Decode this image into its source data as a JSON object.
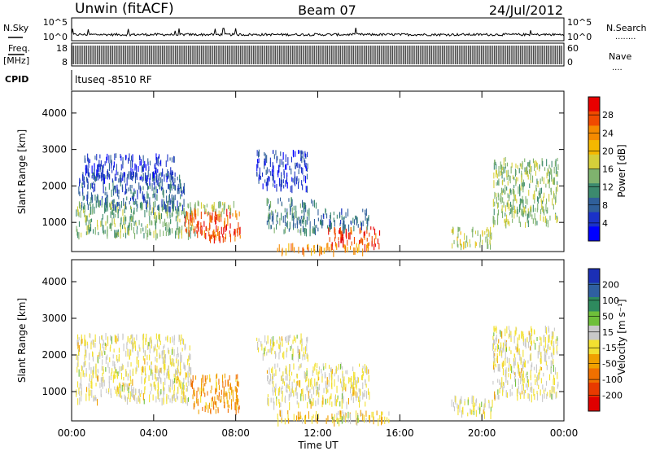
{
  "header": {
    "left_title": "Unwin (fitACF)",
    "center_title": "Beam 07",
    "right_title": "24/Jul/2012"
  },
  "strip": {
    "nsky_label": "N.Sky",
    "nsearch_label": "N.Search",
    "nsearch_dots": "........",
    "noise_ticks": [
      "10^5",
      "10^0"
    ],
    "freq_label_1": "Freq.",
    "freq_label_2": "[MHz]",
    "freq_ticks": [
      "18",
      "8"
    ],
    "nave_label": "Nave",
    "nave_dots": "....",
    "nave_ticks": [
      "60",
      "0"
    ],
    "cpid_label": "CPID",
    "cpid_text": "ltuseq -8510 RF"
  },
  "colorbars": {
    "power": {
      "label": "Power [dB]",
      "ticks": [
        "28",
        "24",
        "20",
        "16",
        "12",
        "8",
        "4"
      ],
      "colors": [
        "#e80000",
        "#f04a00",
        "#f58a00",
        "#f5b800",
        "#d5cf3a",
        "#7fb36e",
        "#3c8a6e",
        "#2f5f9a",
        "#1b32c8",
        "#0000ff"
      ]
    },
    "velocity": {
      "label": "Velocity [m s⁻¹]",
      "ticks": [
        "200",
        "100",
        "50",
        "15",
        "-15",
        "-50",
        "-100",
        "-200"
      ],
      "colors": [
        "#1b2fb5",
        "#2f5fa0",
        "#2e8a5e",
        "#6fbf3a",
        "#c8c8c8",
        "#f2e030",
        "#f0a000",
        "#f07000",
        "#e83a00",
        "#e00000"
      ]
    }
  },
  "chart_data": [
    {
      "type": "heatmap",
      "title": "Power",
      "ylabel": "Slant Range [km]",
      "y_ticks": [
        "1000",
        "2000",
        "3000",
        "4000"
      ],
      "ylim": [
        200,
        4600
      ],
      "xlim": [
        0,
        24
      ],
      "clusters": [
        {
          "t0": 0.2,
          "t1": 6.0,
          "r0": 700,
          "r1": 1600,
          "v": 14
        },
        {
          "t0": 0.3,
          "t1": 5.5,
          "r0": 1400,
          "r1": 2400,
          "v": 9
        },
        {
          "t0": 0.5,
          "t1": 5.0,
          "r0": 2200,
          "r1": 2900,
          "v": 6
        },
        {
          "t0": 5.5,
          "t1": 8.2,
          "r0": 600,
          "r1": 1400,
          "v": 26
        },
        {
          "t0": 6.0,
          "t1": 8.0,
          "r0": 1300,
          "r1": 1600,
          "v": 16
        },
        {
          "t0": 9.5,
          "t1": 12.0,
          "r0": 800,
          "r1": 1700,
          "v": 11
        },
        {
          "t0": 12.5,
          "t1": 15.0,
          "r0": 400,
          "r1": 900,
          "v": 27
        },
        {
          "t0": 12.0,
          "t1": 14.5,
          "r0": 900,
          "r1": 1400,
          "v": 10
        },
        {
          "t0": 10.0,
          "t1": 14.5,
          "r0": 250,
          "r1": 450,
          "v": 22
        },
        {
          "t0": 18.5,
          "t1": 20.5,
          "r0": 400,
          "r1": 900,
          "v": 17
        },
        {
          "t0": 20.5,
          "t1": 23.7,
          "r0": 1000,
          "r1": 2800,
          "v": 15
        },
        {
          "t0": 9.0,
          "t1": 11.5,
          "r0": 2000,
          "r1": 3000,
          "v": 6
        }
      ]
    },
    {
      "type": "heatmap",
      "title": "Velocity",
      "ylabel": "Slant Range [km]",
      "y_ticks": [
        "1000",
        "2000",
        "3000",
        "4000"
      ],
      "ylim": [
        200,
        4600
      ],
      "xlim": [
        0,
        24
      ],
      "x_ticks": [
        "00:00",
        "04:00",
        "08:00",
        "12:00",
        "16:00",
        "20:00",
        "00:00"
      ],
      "xlabel": "Time UT",
      "clusters": [
        {
          "t0": 0.2,
          "t1": 5.8,
          "r0": 800,
          "r1": 2600,
          "v": 0
        },
        {
          "t0": 5.8,
          "t1": 8.2,
          "r0": 500,
          "r1": 1500,
          "v": -90
        },
        {
          "t0": 9.5,
          "t1": 14.5,
          "r0": 700,
          "r1": 1800,
          "v": 0
        },
        {
          "t0": 10.0,
          "t1": 15.5,
          "r0": 250,
          "r1": 500,
          "v": -40
        },
        {
          "t0": 12.5,
          "t1": 14.0,
          "r0": 250,
          "r1": 450,
          "v": 30
        },
        {
          "t0": 18.5,
          "t1": 20.5,
          "r0": 400,
          "r1": 900,
          "v": 0
        },
        {
          "t0": 20.5,
          "t1": 23.7,
          "r0": 900,
          "r1": 2800,
          "v": 0
        },
        {
          "t0": 9.0,
          "t1": 11.5,
          "r0": 2000,
          "r1": 2600,
          "v": 0
        }
      ]
    }
  ]
}
